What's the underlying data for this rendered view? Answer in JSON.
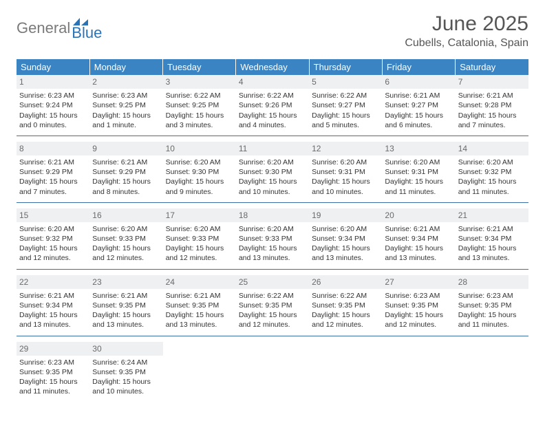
{
  "brand": {
    "gray": "General",
    "blue": "Blue"
  },
  "header": {
    "title": "June 2025",
    "location": "Cubells, Catalonia, Spain"
  },
  "colors": {
    "header_bg": "#3a84c4",
    "header_text": "#ffffff",
    "daynum_bg": "#eef0f2",
    "daynum_text": "#6a6a6a",
    "border": "#3a6ea5",
    "logo_gray": "#7a7a7a",
    "logo_blue": "#2b73b7"
  },
  "weekdays": [
    "Sunday",
    "Monday",
    "Tuesday",
    "Wednesday",
    "Thursday",
    "Friday",
    "Saturday"
  ],
  "weeks": [
    [
      {
        "n": "1",
        "sr": "6:23 AM",
        "ss": "9:24 PM",
        "dl": "15 hours and 0 minutes."
      },
      {
        "n": "2",
        "sr": "6:23 AM",
        "ss": "9:25 PM",
        "dl": "15 hours and 1 minute."
      },
      {
        "n": "3",
        "sr": "6:22 AM",
        "ss": "9:25 PM",
        "dl": "15 hours and 3 minutes."
      },
      {
        "n": "4",
        "sr": "6:22 AM",
        "ss": "9:26 PM",
        "dl": "15 hours and 4 minutes."
      },
      {
        "n": "5",
        "sr": "6:22 AM",
        "ss": "9:27 PM",
        "dl": "15 hours and 5 minutes."
      },
      {
        "n": "6",
        "sr": "6:21 AM",
        "ss": "9:27 PM",
        "dl": "15 hours and 6 minutes."
      },
      {
        "n": "7",
        "sr": "6:21 AM",
        "ss": "9:28 PM",
        "dl": "15 hours and 7 minutes."
      }
    ],
    [
      {
        "n": "8",
        "sr": "6:21 AM",
        "ss": "9:29 PM",
        "dl": "15 hours and 7 minutes."
      },
      {
        "n": "9",
        "sr": "6:21 AM",
        "ss": "9:29 PM",
        "dl": "15 hours and 8 minutes."
      },
      {
        "n": "10",
        "sr": "6:20 AM",
        "ss": "9:30 PM",
        "dl": "15 hours and 9 minutes."
      },
      {
        "n": "11",
        "sr": "6:20 AM",
        "ss": "9:30 PM",
        "dl": "15 hours and 10 minutes."
      },
      {
        "n": "12",
        "sr": "6:20 AM",
        "ss": "9:31 PM",
        "dl": "15 hours and 10 minutes."
      },
      {
        "n": "13",
        "sr": "6:20 AM",
        "ss": "9:31 PM",
        "dl": "15 hours and 11 minutes."
      },
      {
        "n": "14",
        "sr": "6:20 AM",
        "ss": "9:32 PM",
        "dl": "15 hours and 11 minutes."
      }
    ],
    [
      {
        "n": "15",
        "sr": "6:20 AM",
        "ss": "9:32 PM",
        "dl": "15 hours and 12 minutes."
      },
      {
        "n": "16",
        "sr": "6:20 AM",
        "ss": "9:33 PM",
        "dl": "15 hours and 12 minutes."
      },
      {
        "n": "17",
        "sr": "6:20 AM",
        "ss": "9:33 PM",
        "dl": "15 hours and 12 minutes."
      },
      {
        "n": "18",
        "sr": "6:20 AM",
        "ss": "9:33 PM",
        "dl": "15 hours and 13 minutes."
      },
      {
        "n": "19",
        "sr": "6:20 AM",
        "ss": "9:34 PM",
        "dl": "15 hours and 13 minutes."
      },
      {
        "n": "20",
        "sr": "6:21 AM",
        "ss": "9:34 PM",
        "dl": "15 hours and 13 minutes."
      },
      {
        "n": "21",
        "sr": "6:21 AM",
        "ss": "9:34 PM",
        "dl": "15 hours and 13 minutes."
      }
    ],
    [
      {
        "n": "22",
        "sr": "6:21 AM",
        "ss": "9:34 PM",
        "dl": "15 hours and 13 minutes."
      },
      {
        "n": "23",
        "sr": "6:21 AM",
        "ss": "9:35 PM",
        "dl": "15 hours and 13 minutes."
      },
      {
        "n": "24",
        "sr": "6:21 AM",
        "ss": "9:35 PM",
        "dl": "15 hours and 13 minutes."
      },
      {
        "n": "25",
        "sr": "6:22 AM",
        "ss": "9:35 PM",
        "dl": "15 hours and 12 minutes."
      },
      {
        "n": "26",
        "sr": "6:22 AM",
        "ss": "9:35 PM",
        "dl": "15 hours and 12 minutes."
      },
      {
        "n": "27",
        "sr": "6:23 AM",
        "ss": "9:35 PM",
        "dl": "15 hours and 12 minutes."
      },
      {
        "n": "28",
        "sr": "6:23 AM",
        "ss": "9:35 PM",
        "dl": "15 hours and 11 minutes."
      }
    ],
    [
      {
        "n": "29",
        "sr": "6:23 AM",
        "ss": "9:35 PM",
        "dl": "15 hours and 11 minutes."
      },
      {
        "n": "30",
        "sr": "6:24 AM",
        "ss": "9:35 PM",
        "dl": "15 hours and 10 minutes."
      },
      null,
      null,
      null,
      null,
      null
    ]
  ],
  "labels": {
    "sunrise": "Sunrise:",
    "sunset": "Sunset:",
    "daylight": "Daylight:"
  }
}
